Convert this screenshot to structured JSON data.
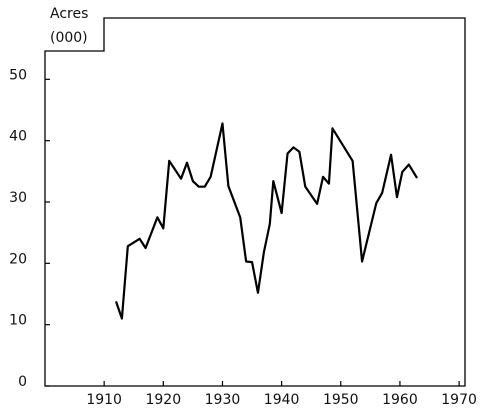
{
  "chart_data": {
    "type": "line",
    "y_label": [
      "Acres",
      "(000)"
    ],
    "x": [
      1912,
      1913,
      1914,
      1916,
      1917,
      1919,
      1920,
      1921,
      1923,
      1924,
      1925,
      1926,
      1927,
      1928,
      1930,
      1931,
      1933,
      1934,
      1935,
      1936,
      1937,
      1938,
      1938.6,
      1940,
      1941,
      1942,
      1943,
      1944,
      1946,
      1947,
      1948,
      1948.6,
      1952,
      1953.6,
      1956,
      1957,
      1958.5,
      1959.5,
      1960.4,
      1961.5,
      1962.9
    ],
    "series": [
      {
        "name": "Acres",
        "color": "#000000",
        "values": [
          13.8,
          11,
          22.8,
          24,
          22.5,
          27.5,
          25.7,
          36.7,
          33.8,
          36.4,
          33.4,
          32.5,
          32.5,
          34.1,
          42.8,
          32.6,
          27.5,
          20.3,
          20.2,
          15.2,
          21.8,
          26.4,
          33.4,
          28.2,
          37.9,
          38.9,
          38.2,
          32.5,
          29.7,
          34.1,
          33,
          42,
          36.7,
          20.3,
          29.8,
          31.5,
          37.7,
          30.8,
          34.9,
          36.1,
          33.9
        ]
      }
    ],
    "xlim": [
      1900,
      1971
    ],
    "ylim": [
      0,
      60
    ],
    "xticks": [
      1910,
      1920,
      1930,
      1940,
      1950,
      1960,
      1970
    ],
    "yticks": [
      0,
      10,
      20,
      30,
      40,
      50
    ]
  }
}
